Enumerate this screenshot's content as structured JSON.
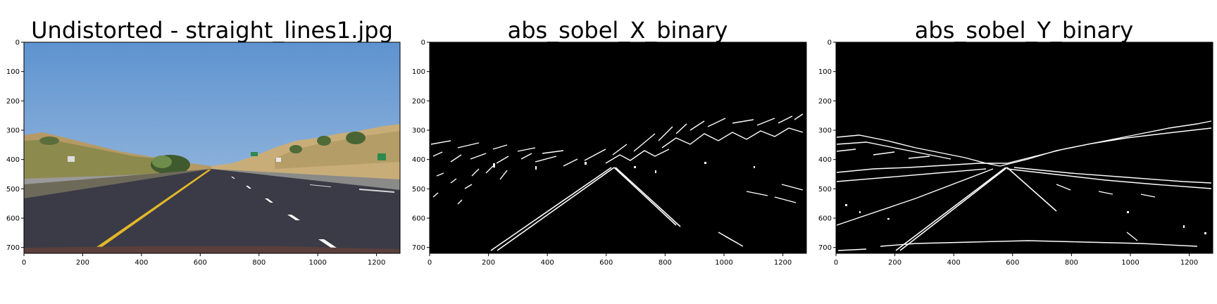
{
  "panels": [
    {
      "title": "Undistorted - straight_lines1.jpg",
      "xticks": [
        "0",
        "200",
        "400",
        "600",
        "800",
        "1000",
        "1200"
      ],
      "yticks": [
        "0",
        "100",
        "200",
        "300",
        "400",
        "500",
        "600",
        "700"
      ]
    },
    {
      "title": "abs_sobel_X_binary",
      "xticks": [
        "0",
        "200",
        "400",
        "600",
        "800",
        "1000",
        "1200"
      ],
      "yticks": [
        "0",
        "100",
        "200",
        "300",
        "400",
        "500",
        "600",
        "700"
      ]
    },
    {
      "title": "abs_sobel_Y_binary",
      "xticks": [
        "0",
        "200",
        "400",
        "600",
        "800",
        "1000",
        "1200"
      ],
      "yticks": [
        "0",
        "100",
        "200",
        "300",
        "400",
        "500",
        "600",
        "700"
      ]
    }
  ],
  "colors": {
    "sky": "#6f9fd3",
    "road": "#3a3b46",
    "lane_yellow": "#e3b72a",
    "lane_white": "#ffffff",
    "binary_bg": "#000000",
    "binary_edge": "#ffffff"
  }
}
